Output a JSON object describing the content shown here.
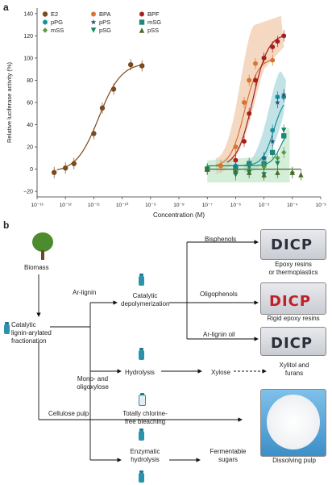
{
  "panel_a_label": "a",
  "panel_b_label": "b",
  "chart_data": {
    "type": "scatter",
    "xlabel": "Concentration (M)",
    "ylabel": "Relative luciferase activity (%)",
    "xscale": "log",
    "xlim": [
      1e-13,
      0.001
    ],
    "ylim": [
      -25,
      145
    ],
    "x_tick_labels": [
      "10⁻¹³",
      "10⁻¹²",
      "10⁻¹¹",
      "10⁻¹⁰",
      "10⁻⁹",
      "10⁻⁸",
      "10⁻⁷",
      "10⁻⁶",
      "10⁻⁵",
      "10⁻⁴",
      "10⁻³"
    ],
    "y_ticks": [
      -20,
      0,
      20,
      40,
      60,
      80,
      100,
      120,
      140
    ],
    "legend_position": "top-left",
    "series": [
      {
        "name": "E2",
        "color": "#7b4a1e",
        "marker": "circle",
        "x": [
          4e-13,
          1e-12,
          2e-12,
          1e-11,
          2e-11,
          5e-11,
          2e-10,
          5e-10
        ],
        "y": [
          -3,
          1,
          5,
          32,
          55,
          72,
          94,
          93
        ]
      },
      {
        "name": "BPA",
        "color": "#d9732e",
        "marker": "hexagon",
        "x": [
          3e-07,
          1e-06,
          2e-06,
          3e-06,
          5e-06,
          1e-05,
          2e-05
        ],
        "y": [
          3,
          20,
          60,
          80,
          95,
          100,
          98
        ]
      },
      {
        "name": "BPF",
        "color": "#a51f1f",
        "marker": "hexagon",
        "x": [
          1e-06,
          2e-06,
          3e-06,
          5e-06,
          1e-05,
          2e-05,
          3e-05,
          5e-05
        ],
        "y": [
          8,
          25,
          50,
          80,
          100,
          110,
          115,
          120
        ]
      },
      {
        "name": "pPG",
        "color": "#1a8ea0",
        "marker": "hexagon",
        "x": [
          1e-06,
          3e-06,
          1e-05,
          2e-05,
          3e-05,
          5e-05
        ],
        "y": [
          3,
          5,
          10,
          35,
          65,
          65
        ]
      },
      {
        "name": "pPS",
        "color": "#24577a",
        "marker": "star",
        "x": [
          1e-06,
          3e-06,
          1e-05,
          2e-05,
          3e-05,
          5e-05
        ],
        "y": [
          2,
          3,
          10,
          25,
          60,
          67
        ]
      },
      {
        "name": "mSG",
        "color": "#1f8878",
        "marker": "square",
        "x": [
          1e-07,
          1e-06,
          3e-06,
          1e-05,
          2e-05,
          5e-05
        ],
        "y": [
          0,
          0,
          5,
          5,
          15,
          30
        ]
      },
      {
        "name": "mSS",
        "color": "#5d9b3f",
        "marker": "diamond",
        "x": [
          1e-07,
          1e-06,
          3e-06,
          1e-05,
          3e-05,
          5e-05,
          0.0001
        ],
        "y": [
          0,
          -2,
          0,
          2,
          10,
          15,
          -3
        ]
      },
      {
        "name": "pSG",
        "color": "#10885b",
        "marker": "triangle-down",
        "x": [
          1e-07,
          1e-06,
          3e-06,
          1e-05,
          3e-05,
          5e-05
        ],
        "y": [
          0,
          -5,
          -3,
          -5,
          5,
          35
        ]
      },
      {
        "name": "pSS",
        "color": "#4a6a2c",
        "marker": "triangle-up",
        "x": [
          1e-07,
          1e-06,
          3e-06,
          1e-05,
          3e-05,
          0.0001,
          0.0002
        ],
        "y": [
          0,
          -2,
          -3,
          -5,
          -3,
          -3,
          -5
        ]
      }
    ]
  },
  "diagram": {
    "nodes": {
      "biomass": "Biomass",
      "catalytic_fractionation": "Catalytic\nlignin-arylated\nfractionation",
      "ar_lignin": "Ar-lignin",
      "catalytic_depolymerization": "Catalytic\ndepolymerization",
      "mono_oligoxylose": "Mono- and\noligoxylose",
      "hydrolysis": "Hydrolysis",
      "xylose": "Xylose",
      "xylitol_furans": "Xylitol and\nfurans",
      "cellulose_pulp": "Cellulose pulp",
      "tcf_bleaching": "Totally chlorine-\nfree bleaching",
      "enzymatic_hydrolysis": "Enzymatic\nhydrolysis",
      "fermentable_sugars": "Fermentable\nsugars",
      "dissolving_pulp": "Dissolving pulp"
    },
    "branches": {
      "bisphenols": "Bisphenols",
      "oligophenols": "Oligophenols",
      "ar_lignin_oil": "Ar-lignin oil"
    },
    "products": {
      "epoxy_thermo": "Epoxy resins\nor thermoplastics",
      "rigid_epoxy": "Rigid epoxy resins"
    },
    "logo_text": "DICP"
  }
}
